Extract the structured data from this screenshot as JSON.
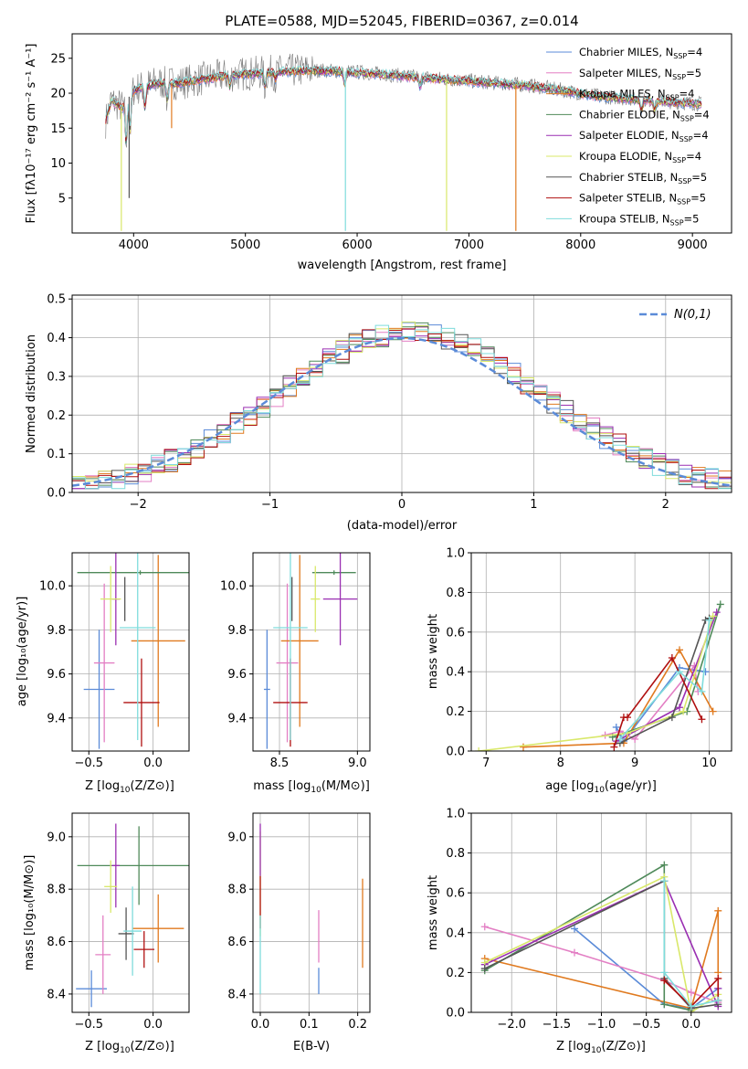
{
  "figure_title": "PLATE=0588, MJD=52045, FIBERID=0367, z=0.014",
  "colors": {
    "Chabrier MILES": "#5b8bd8",
    "Salpeter MILES": "#e37fc4",
    "Kroupa MILES": "#e07a1f",
    "Chabrier ELODIE": "#4f8a5a",
    "Salpeter ELODIE": "#9a2fb2",
    "Kroupa ELODIE": "#d9e86a",
    "Chabrier STELIB": "#555555",
    "Salpeter STELIB": "#b01010",
    "Kroupa STELIB": "#7fdcdc",
    "normal_curve": "#5b8bd8",
    "spectrum_gray": "#7a7a7a"
  },
  "legend_entries": [
    {
      "model": "Chabrier MILES",
      "nssp": "4"
    },
    {
      "model": "Salpeter MILES",
      "nssp": "5"
    },
    {
      "model": "Kroupa MILES",
      "nssp": "4"
    },
    {
      "model": "Chabrier ELODIE",
      "nssp": "4"
    },
    {
      "model": "Salpeter ELODIE",
      "nssp": "4"
    },
    {
      "model": "Kroupa ELODIE",
      "nssp": "4"
    },
    {
      "model": "Chabrier STELIB",
      "nssp": "5"
    },
    {
      "model": "Salpeter STELIB",
      "nssp": "5"
    },
    {
      "model": "Kroupa STELIB",
      "nssp": "5"
    }
  ],
  "chart_data": [
    {
      "id": "spectrum",
      "type": "line",
      "xlabel": "wavelength [Angstrom, rest frame]",
      "ylabel": "Flux [f_λ10^-17 erg cm^-2 s^-1 A^-1]",
      "xlim": [
        3450,
        9350
      ],
      "ylim": [
        0,
        28.5
      ],
      "xticks": [
        4000,
        5000,
        6000,
        7000,
        8000,
        9000
      ],
      "yticks": [
        5,
        10,
        15,
        20,
        25
      ],
      "grid": false,
      "legend_placement": "top-right",
      "continuum": {
        "x": [
          3750,
          3800,
          3900,
          4000,
          4100,
          4200,
          4400,
          4600,
          4800,
          5000,
          5200,
          5400,
          5600,
          5800,
          6000,
          6200,
          6400,
          6600,
          6800,
          7000,
          7200,
          7400,
          7600,
          7800,
          8000,
          8200,
          8400,
          8600,
          8800,
          9000,
          9080
        ],
        "y": [
          16.0,
          19.0,
          18.0,
          20.5,
          21.0,
          21.5,
          21.5,
          22.0,
          22.5,
          22.8,
          23.0,
          23.2,
          23.3,
          23.2,
          23.0,
          22.8,
          22.5,
          22.3,
          22.0,
          21.8,
          21.5,
          21.3,
          21.0,
          20.5,
          20.0,
          19.5,
          19.3,
          19.0,
          18.8,
          18.6,
          18.5
        ]
      },
      "spikes": [
        {
          "model": "Kroupa ELODIE",
          "x": 3890,
          "y": 0.3
        },
        {
          "model": "Chabrier STELIB",
          "x": 3960,
          "y": 5.0
        },
        {
          "model": "Kroupa MILES",
          "x": 4340,
          "y": 15.0
        },
        {
          "model": "Kroupa STELIB",
          "x": 5895,
          "y": 0.3
        },
        {
          "model": "Kroupa ELODIE",
          "x": 6800,
          "y": 0.3
        },
        {
          "model": "Kroupa MILES",
          "x": 7420,
          "y": 0.3
        }
      ]
    },
    {
      "id": "residual_histogram",
      "type": "bar",
      "xlabel": "(data-model)/error",
      "ylabel": "Normed distribution",
      "xlim": [
        -2.5,
        2.5
      ],
      "ylim": [
        0,
        0.51
      ],
      "xticks": [
        -2,
        -1,
        0,
        1,
        2
      ],
      "yticks": [
        0.0,
        0.1,
        0.2,
        0.3,
        0.4,
        0.5
      ],
      "grid": true,
      "legend_placement": "top-right",
      "normal_curve_label": "N(0,1)",
      "bin_width": 0.1
    },
    {
      "id": "age_vs_Z",
      "type": "scatter",
      "xlabel": "Z [log10(Z/Z⊙)]",
      "ylabel": "age [log10(age/yr)]",
      "xlim": [
        -0.63,
        0.28
      ],
      "ylim": [
        9.25,
        10.15
      ],
      "xticks": [
        -0.5,
        0.0
      ],
      "yticks": [
        9.4,
        9.6,
        9.8,
        10.0
      ],
      "grid": true,
      "points": [
        {
          "model": "Chabrier MILES",
          "x": -0.42,
          "y": 9.53,
          "xerr": 0.12,
          "yerr": 0.27
        },
        {
          "model": "Salpeter MILES",
          "x": -0.38,
          "y": 9.65,
          "xerr": 0.08,
          "yerr": 0.36
        },
        {
          "model": "Kroupa MILES",
          "x": 0.04,
          "y": 9.75,
          "xerr": 0.21,
          "yerr": 0.39
        },
        {
          "model": "Chabrier ELODIE",
          "x": -0.1,
          "y": 10.06,
          "xerr": 0.49,
          "yerr": 0.01
        },
        {
          "model": "Salpeter ELODIE",
          "x": -0.29,
          "y": 9.94,
          "xerr": 0.03,
          "yerr": 0.21
        },
        {
          "model": "Kroupa ELODIE",
          "x": -0.33,
          "y": 9.94,
          "xerr": 0.08,
          "yerr": 0.15
        },
        {
          "model": "Chabrier STELIB",
          "x": -0.22,
          "y": 9.94,
          "xerr": 0.0,
          "yerr": 0.1
        },
        {
          "model": "Salpeter STELIB",
          "x": -0.09,
          "y": 9.47,
          "xerr": 0.14,
          "yerr": 0.2
        },
        {
          "model": "Kroupa STELIB",
          "x": -0.12,
          "y": 9.81,
          "xerr": 0.14,
          "yerr": 0.51
        }
      ]
    },
    {
      "id": "age_vs_mass",
      "type": "scatter",
      "xlabel": "mass [log10(M/M⊙)]",
      "ylabel": "",
      "xlim": [
        8.33,
        9.08
      ],
      "ylim": [
        9.25,
        10.15
      ],
      "xticks": [
        8.5,
        9.0
      ],
      "yticks": [
        9.4,
        9.6,
        9.8,
        10.0
      ],
      "grid": true,
      "points": [
        {
          "model": "Chabrier MILES",
          "x": 8.42,
          "y": 9.53,
          "xerr": 0.02,
          "yerr": 0.27
        },
        {
          "model": "Salpeter MILES",
          "x": 8.55,
          "y": 9.65,
          "xerr": 0.07,
          "yerr": 0.36
        },
        {
          "model": "Kroupa MILES",
          "x": 8.63,
          "y": 9.75,
          "xerr": 0.12,
          "yerr": 0.39
        },
        {
          "model": "Chabrier ELODIE",
          "x": 8.85,
          "y": 10.06,
          "xerr": 0.14,
          "yerr": 0.01
        },
        {
          "model": "Salpeter ELODIE",
          "x": 8.89,
          "y": 9.94,
          "xerr": 0.11,
          "yerr": 0.21
        },
        {
          "model": "Kroupa ELODIE",
          "x": 8.73,
          "y": 9.94,
          "xerr": 0.03,
          "yerr": 0.15
        },
        {
          "model": "Chabrier STELIB",
          "x": 8.58,
          "y": 9.94,
          "xerr": 0.0,
          "yerr": 0.1
        },
        {
          "model": "Salpeter STELIB",
          "x": 8.57,
          "y": 9.47,
          "xerr": 0.11,
          "yerr": 0.2
        },
        {
          "model": "Kroupa STELIB",
          "x": 8.57,
          "y": 9.81,
          "xerr": 0.11,
          "yerr": 0.51
        }
      ]
    },
    {
      "id": "weight_vs_age",
      "type": "line",
      "xlabel": "age [log10(age/yr)]",
      "ylabel": "mass weight",
      "xlim": [
        6.8,
        10.3
      ],
      "ylim": [
        0,
        1.0
      ],
      "xticks": [
        7,
        8,
        9,
        10
      ],
      "yticks": [
        0.0,
        0.2,
        0.4,
        0.6,
        0.8,
        1.0
      ],
      "grid": true,
      "series": [
        {
          "model": "Chabrier MILES",
          "x": [
            8.75,
            8.85,
            9.6,
            9.95
          ],
          "y": [
            0.12,
            0.05,
            0.42,
            0.4
          ]
        },
        {
          "model": "Salpeter MILES",
          "x": [
            8.6,
            8.8,
            9.0,
            9.8,
            9.85
          ],
          "y": [
            0.08,
            0.1,
            0.06,
            0.43,
            0.3
          ]
        },
        {
          "model": "Kroupa MILES",
          "x": [
            7.5,
            8.85,
            9.6,
            10.05
          ],
          "y": [
            0.02,
            0.04,
            0.51,
            0.2
          ]
        },
        {
          "model": "Chabrier ELODIE",
          "x": [
            8.7,
            9.7,
            10.15
          ],
          "y": [
            0.07,
            0.2,
            0.74
          ]
        },
        {
          "model": "Salpeter ELODIE",
          "x": [
            8.75,
            9.6,
            10.1
          ],
          "y": [
            0.05,
            0.22,
            0.7
          ]
        },
        {
          "model": "Kroupa ELODIE",
          "x": [
            6.9,
            8.9,
            9.65,
            10.05
          ],
          "y": [
            0.0,
            0.09,
            0.2,
            0.68
          ]
        },
        {
          "model": "Chabrier STELIB",
          "x": [
            8.8,
            9.5,
            9.95,
            10.0
          ],
          "y": [
            0.04,
            0.17,
            0.66,
            0.67
          ]
        },
        {
          "model": "Salpeter STELIB",
          "x": [
            8.72,
            8.85,
            8.9,
            9.5,
            9.9
          ],
          "y": [
            0.02,
            0.17,
            0.17,
            0.47,
            0.16
          ]
        },
        {
          "model": "Kroupa STELIB",
          "x": [
            8.8,
            9.6,
            9.9,
            10.0
          ],
          "y": [
            0.06,
            0.4,
            0.3,
            0.66
          ]
        }
      ]
    },
    {
      "id": "mass_vs_Z",
      "type": "scatter",
      "xlabel": "Z [log10(Z/Z⊙)]",
      "ylabel": "mass [log10(M/M⊙)]",
      "xlim": [
        -0.63,
        0.28
      ],
      "ylim": [
        8.33,
        9.09
      ],
      "xticks": [
        -0.5,
        0.0
      ],
      "yticks": [
        8.4,
        8.6,
        8.8,
        9.0
      ],
      "grid": true,
      "points": [
        {
          "model": "Chabrier MILES",
          "x": -0.48,
          "y": 8.42,
          "xerr": 0.12,
          "yerr": 0.07
        },
        {
          "model": "Salpeter MILES",
          "x": -0.39,
          "y": 8.55,
          "xerr": 0.06,
          "yerr": 0.15
        },
        {
          "model": "Kroupa MILES",
          "x": 0.04,
          "y": 8.65,
          "xerr": 0.2,
          "yerr": 0.13
        },
        {
          "model": "Chabrier ELODIE",
          "x": -0.11,
          "y": 8.89,
          "xerr": 0.48,
          "yerr": 0.15
        },
        {
          "model": "Salpeter ELODIE",
          "x": -0.29,
          "y": 8.89,
          "xerr": 0.03,
          "yerr": 0.16
        },
        {
          "model": "Kroupa ELODIE",
          "x": -0.33,
          "y": 8.81,
          "xerr": 0.05,
          "yerr": 0.1
        },
        {
          "model": "Chabrier STELIB",
          "x": -0.21,
          "y": 8.63,
          "xerr": 0.06,
          "yerr": 0.1
        },
        {
          "model": "Salpeter STELIB",
          "x": -0.07,
          "y": 8.57,
          "xerr": 0.08,
          "yerr": 0.07
        },
        {
          "model": "Kroupa STELIB",
          "x": -0.16,
          "y": 8.64,
          "xerr": 0.07,
          "yerr": 0.17
        }
      ]
    },
    {
      "id": "mass_vs_ebv",
      "type": "scatter",
      "xlabel": "E(B-V)",
      "ylabel": "",
      "xlim": [
        -0.015,
        0.225
      ],
      "ylim": [
        8.33,
        9.09
      ],
      "xticks": [
        0.0,
        0.1,
        0.2
      ],
      "yticks": [
        8.4,
        8.6,
        8.8,
        9.0
      ],
      "grid": true,
      "points": [
        {
          "model": "Salpeter MILES",
          "x": 0.12,
          "y": 8.62,
          "xerr": 0.0,
          "yerr": 0.1
        },
        {
          "model": "Kroupa MILES",
          "x": 0.21,
          "y": 8.67,
          "xerr": 0.0,
          "yerr": 0.17
        },
        {
          "model": "Kroupa ELODIE",
          "x": 0.0,
          "y": 8.82,
          "xerr": 0.0,
          "yerr": 0.2
        },
        {
          "model": "Salpeter ELODIE",
          "x": 0.0,
          "y": 8.95,
          "xerr": 0.0,
          "yerr": 0.1
        },
        {
          "model": "Salpeter STELIB",
          "x": 0.0,
          "y": 8.75,
          "xerr": 0.0,
          "yerr": 0.1
        },
        {
          "model": "Kroupa STELIB",
          "x": 0.0,
          "y": 8.55,
          "xerr": 0.0,
          "yerr": 0.15
        },
        {
          "model": "Chabrier MILES",
          "x": 0.12,
          "y": 8.45,
          "xerr": 0.0,
          "yerr": 0.05
        }
      ]
    },
    {
      "id": "weight_vs_Z",
      "type": "line",
      "xlabel": "Z [log10(Z/Z⊙)]",
      "ylabel": "mass weight",
      "xlim": [
        -2.45,
        0.45
      ],
      "ylim": [
        0,
        1.0
      ],
      "xticks": [
        -2.0,
        -1.5,
        -1.0,
        -0.5,
        0.0
      ],
      "yticks": [
        0.0,
        0.2,
        0.4,
        0.6,
        0.8,
        1.0
      ],
      "grid": true,
      "series": [
        {
          "model": "Chabrier MILES",
          "x": [
            -1.3,
            -0.3,
            0.0,
            0.3
          ],
          "y": [
            0.42,
            0.04,
            0.02,
            0.12
          ]
        },
        {
          "model": "Salpeter MILES",
          "x": [
            -2.3,
            -1.3,
            -0.3,
            0.0,
            0.3
          ],
          "y": [
            0.43,
            0.3,
            0.16,
            0.1,
            0.05
          ]
        },
        {
          "model": "Kroupa MILES",
          "x": [
            -2.3,
            0.0,
            0.3,
            0.3
          ],
          "y": [
            0.27,
            0.02,
            0.51,
            0.2
          ]
        },
        {
          "model": "Chabrier ELODIE",
          "x": [
            -2.3,
            -0.3,
            -0.3,
            0.0
          ],
          "y": [
            0.21,
            0.74,
            0.04,
            0.01
          ]
        },
        {
          "model": "Salpeter ELODIE",
          "x": [
            -2.3,
            -0.3,
            0.3,
            0.3
          ],
          "y": [
            0.24,
            0.66,
            0.03,
            0.12
          ]
        },
        {
          "model": "Kroupa ELODIE",
          "x": [
            -2.3,
            -0.3,
            0.0,
            0.3
          ],
          "y": [
            0.25,
            0.68,
            0.0,
            0.09
          ]
        },
        {
          "model": "Chabrier STELIB",
          "x": [
            -2.3,
            -0.3,
            -0.3,
            0.0,
            0.3
          ],
          "y": [
            0.22,
            0.66,
            0.17,
            0.02,
            0.04
          ]
        },
        {
          "model": "Salpeter STELIB",
          "x": [
            -0.3,
            0.0,
            0.3,
            0.3
          ],
          "y": [
            0.16,
            0.03,
            0.17,
            0.06
          ]
        },
        {
          "model": "Kroupa STELIB",
          "x": [
            -0.3,
            -0.3,
            0.0,
            0.3
          ],
          "y": [
            0.66,
            0.2,
            0.03,
            0.06
          ]
        }
      ]
    }
  ]
}
